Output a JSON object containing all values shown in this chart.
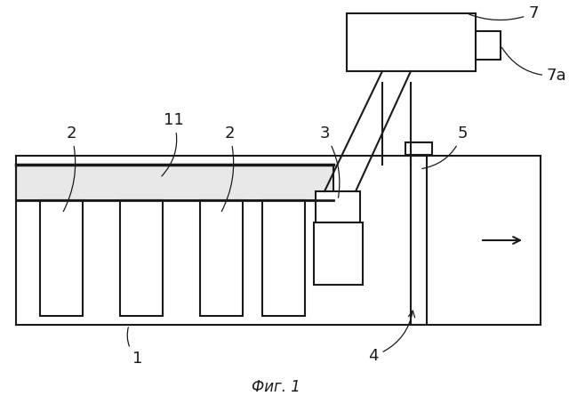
{
  "bg_color": "#ffffff",
  "line_color": "#1a1a1a",
  "fig_label": "Фиг. 1",
  "lw": 1.5
}
